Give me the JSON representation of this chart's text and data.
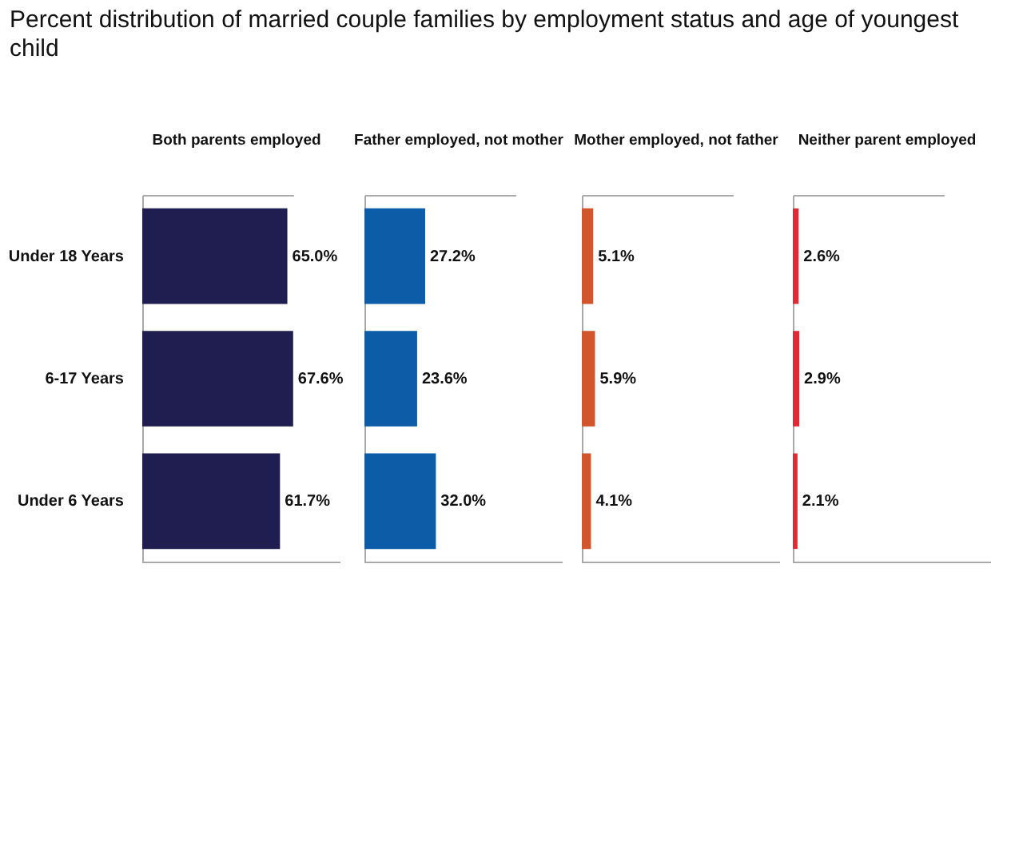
{
  "chart_data": [
    {
      "type": "bar",
      "orientation": "horizontal",
      "title": "Percent distribution of married couple families by employment status and age of youngest child",
      "subtitle": "Both parents employed",
      "categories": [
        "Under 18 Years",
        "6-17 Years",
        "Under 6 Years"
      ],
      "color": "#201d50",
      "values": [
        65.0,
        67.6,
        61.7
      ],
      "value_labels": [
        "65.0%",
        "67.6%",
        "61.7%"
      ]
    },
    {
      "type": "bar",
      "orientation": "horizontal",
      "subtitle": "Father employed, not mother",
      "color": "#0c5ca8",
      "values": [
        27.2,
        23.6,
        32.0
      ],
      "value_labels": [
        "27.2%",
        "23.6%",
        "32.0%"
      ]
    },
    {
      "type": "bar",
      "orientation": "horizontal",
      "subtitle": "Mother employed, not father",
      "color": "#d1562b",
      "values": [
        5.1,
        5.9,
        4.1
      ],
      "value_labels": [
        "5.1%",
        "5.9%",
        "4.1%"
      ]
    },
    {
      "type": "bar",
      "orientation": "horizontal",
      "subtitle": "Neither parent employed",
      "color": "#dd2c36",
      "values": [
        2.6,
        2.9,
        2.1
      ],
      "value_labels": [
        "2.6%",
        "2.9%",
        "2.1%"
      ]
    }
  ]
}
